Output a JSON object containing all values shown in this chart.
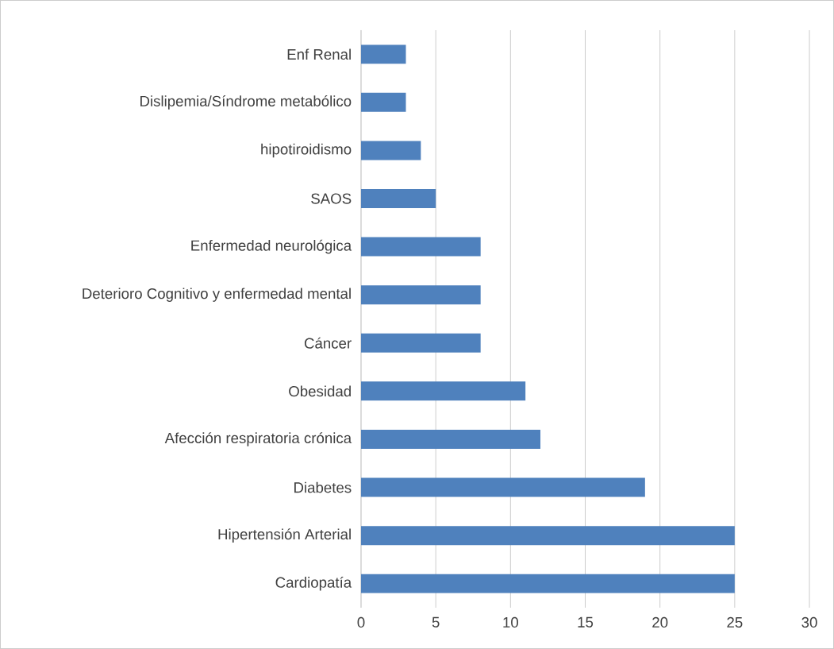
{
  "chart_data": {
    "type": "bar",
    "orientation": "horizontal",
    "categories": [
      "Enf Renal",
      "Dislipemia/Síndrome metabólico",
      "hipotiroidismo",
      "SAOS",
      "Enfermedad neurológica",
      "Deterioro Cognitivo y enfermedad mental",
      "Cáncer",
      "Obesidad",
      "Afección respiratoria crónica",
      "Diabetes",
      "Hipertensión Arterial",
      "Cardiopatía"
    ],
    "values": [
      3,
      3,
      4,
      5,
      8,
      8,
      8,
      11,
      12,
      19,
      25,
      25
    ],
    "color": "#4f81bd",
    "xlim": [
      0,
      30
    ],
    "xticks": [
      0,
      5,
      10,
      15,
      20,
      25,
      30
    ],
    "grid": "x"
  }
}
